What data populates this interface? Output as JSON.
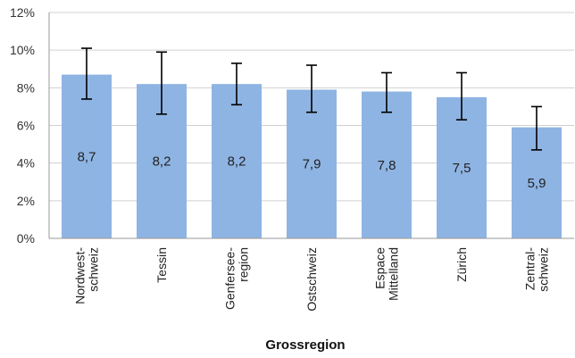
{
  "chart_data": {
    "type": "bar",
    "title": "",
    "xlabel": "Grossregion",
    "ylabel": "",
    "categories": [
      [
        "Nordwest-",
        "schweiz"
      ],
      [
        "Tessin"
      ],
      [
        "Genfersee-",
        "region"
      ],
      [
        "Ostschweiz"
      ],
      [
        "Espace",
        "Mittelland"
      ],
      [
        "Zürich"
      ],
      [
        "Zentral-",
        "schweiz"
      ]
    ],
    "values": [
      8.7,
      8.2,
      8.2,
      7.9,
      7.8,
      7.5,
      5.9
    ],
    "value_labels": [
      "8,7",
      "8,2",
      "8,2",
      "7,9",
      "7,8",
      "7,5",
      "5,9"
    ],
    "error_low": [
      7.4,
      6.6,
      7.1,
      6.7,
      6.7,
      6.3,
      4.7
    ],
    "error_high": [
      10.1,
      9.9,
      9.3,
      9.2,
      8.8,
      8.8,
      7.0
    ],
    "ylim": [
      0,
      12
    ],
    "yticks": [
      "0%",
      "2%",
      "4%",
      "6%",
      "8%",
      "10%",
      "12%"
    ],
    "grid": true,
    "bar_color": "#8eb4e3",
    "grid_color": "#d0d0d0",
    "error_bar_color": "#000000"
  }
}
